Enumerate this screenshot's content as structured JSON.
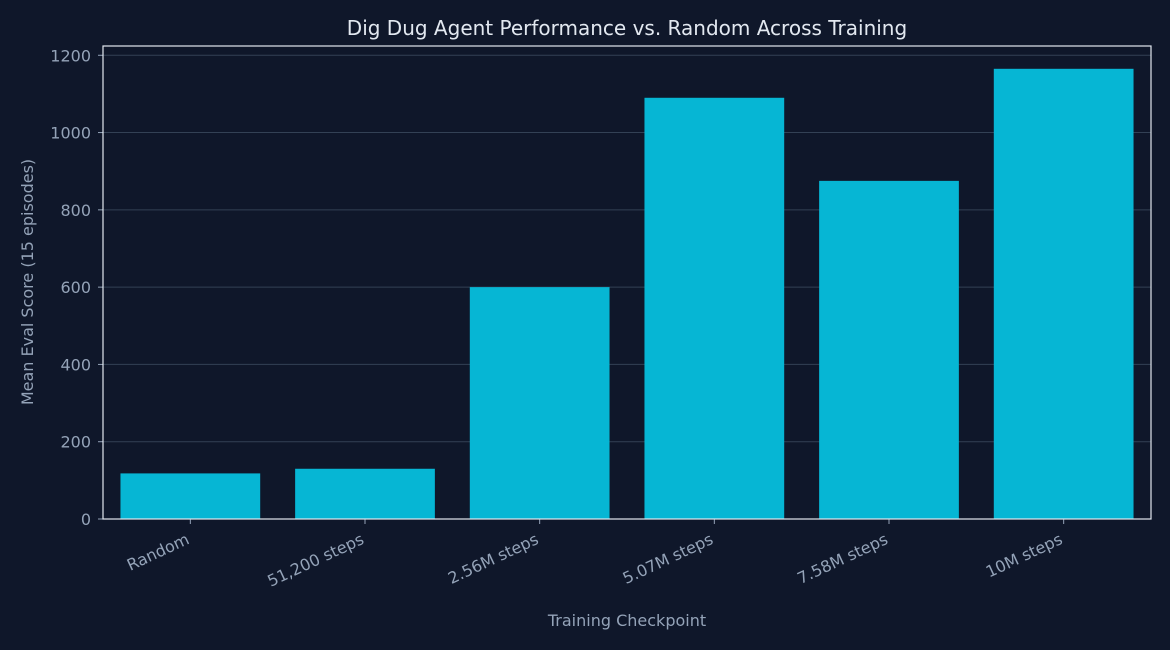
{
  "chart_data": {
    "type": "bar",
    "title": "Dig Dug Agent Performance vs. Random Across Training",
    "xlabel": "Training Checkpoint",
    "ylabel": "Mean Eval Score (15 episodes)",
    "categories": [
      "Random",
      "51,200 steps",
      "2.56M steps",
      "5.07M steps",
      "7.58M steps",
      "10M steps"
    ],
    "values": [
      118,
      130,
      600,
      1090,
      875,
      1165
    ],
    "ylim": [
      0,
      1224
    ],
    "yticks": [
      0,
      200,
      400,
      600,
      800,
      1000,
      1200
    ],
    "grid": true,
    "bar_color": "#06b6d4",
    "background": "#0f172a"
  }
}
